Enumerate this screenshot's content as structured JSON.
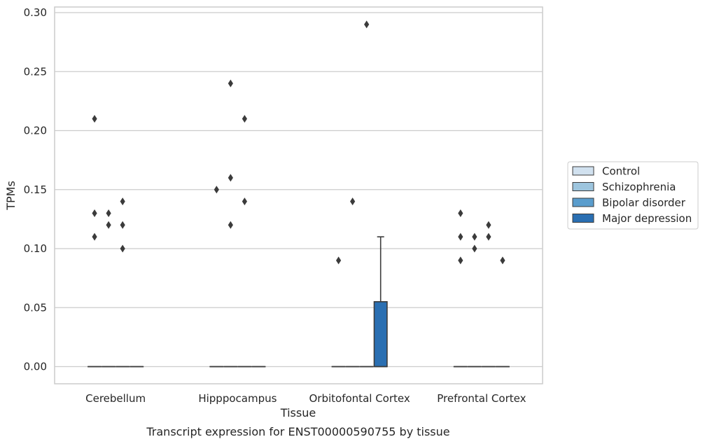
{
  "chart_data": {
    "type": "box",
    "title": "Transcript expression for ENST00000590755 by tissue",
    "xlabel": "Tissue",
    "ylabel": "TPMs",
    "categories": [
      "Cerebellum",
      "Hipppocampus",
      "Orbitofontal Cortex",
      "Prefrontal Cortex"
    ],
    "ylim": [
      -0.015,
      0.305
    ],
    "yticks": [
      0.0,
      0.05,
      0.1,
      0.15,
      0.2,
      0.25,
      0.3
    ],
    "ytick_labels": [
      "0.00",
      "0.05",
      "0.10",
      "0.15",
      "0.20",
      "0.25",
      "0.30"
    ],
    "grid": "horizontal",
    "legend": {
      "position": "right",
      "entries": [
        "Control",
        "Schizophrenia",
        "Bipolar disorder",
        "Major depression"
      ]
    },
    "series_colors": [
      "#d1e1ef",
      "#9dc5de",
      "#5a9dcd",
      "#2a6fb2"
    ],
    "series": [
      {
        "name": "Control",
        "boxes": [
          {
            "category": "Cerebellum",
            "q1": 0,
            "median": 0,
            "q3": 0,
            "whisker_low": 0,
            "whisker_high": 0,
            "outliers": [
              0.21,
              0.13,
              0.11
            ]
          },
          {
            "category": "Hipppocampus",
            "q1": 0,
            "median": 0,
            "q3": 0,
            "whisker_low": 0,
            "whisker_high": 0,
            "outliers": [
              0.15
            ]
          },
          {
            "category": "Orbitofontal Cortex",
            "q1": 0,
            "median": 0,
            "q3": 0,
            "whisker_low": 0,
            "whisker_high": 0,
            "outliers": [
              0.09
            ]
          },
          {
            "category": "Prefrontal Cortex",
            "q1": 0,
            "median": 0,
            "q3": 0,
            "whisker_low": 0,
            "whisker_high": 0,
            "outliers": [
              0.13,
              0.11,
              0.09
            ]
          }
        ]
      },
      {
        "name": "Schizophrenia",
        "boxes": [
          {
            "category": "Cerebellum",
            "q1": 0,
            "median": 0,
            "q3": 0,
            "whisker_low": 0,
            "whisker_high": 0,
            "outliers": [
              0.13,
              0.12
            ]
          },
          {
            "category": "Hipppocampus",
            "q1": 0,
            "median": 0,
            "q3": 0,
            "whisker_low": 0,
            "whisker_high": 0,
            "outliers": [
              0.24,
              0.16,
              0.12
            ]
          },
          {
            "category": "Orbitofontal Cortex",
            "q1": 0,
            "median": 0,
            "q3": 0,
            "whisker_low": 0,
            "whisker_high": 0,
            "outliers": [
              0.14
            ]
          },
          {
            "category": "Prefrontal Cortex",
            "q1": 0,
            "median": 0,
            "q3": 0,
            "whisker_low": 0,
            "whisker_high": 0,
            "outliers": [
              0.11,
              0.1
            ]
          }
        ]
      },
      {
        "name": "Bipolar disorder",
        "boxes": [
          {
            "category": "Cerebellum",
            "q1": 0,
            "median": 0,
            "q3": 0,
            "whisker_low": 0,
            "whisker_high": 0,
            "outliers": [
              0.14,
              0.12,
              0.1
            ]
          },
          {
            "category": "Hipppocampus",
            "q1": 0,
            "median": 0,
            "q3": 0,
            "whisker_low": 0,
            "whisker_high": 0,
            "outliers": [
              0.21,
              0.14
            ]
          },
          {
            "category": "Orbitofontal Cortex",
            "q1": 0,
            "median": 0,
            "q3": 0,
            "whisker_low": 0,
            "whisker_high": 0,
            "outliers": [
              0.29
            ]
          },
          {
            "category": "Prefrontal Cortex",
            "q1": 0,
            "median": 0,
            "q3": 0,
            "whisker_low": 0,
            "whisker_high": 0,
            "outliers": [
              0.12,
              0.11
            ]
          }
        ]
      },
      {
        "name": "Major depression",
        "boxes": [
          {
            "category": "Cerebellum",
            "q1": 0,
            "median": 0,
            "q3": 0,
            "whisker_low": 0,
            "whisker_high": 0,
            "outliers": []
          },
          {
            "category": "Hipppocampus",
            "q1": 0,
            "median": 0,
            "q3": 0,
            "whisker_low": 0,
            "whisker_high": 0,
            "outliers": []
          },
          {
            "category": "Orbitofontal Cortex",
            "q1": 0,
            "median": 0,
            "q3": 0.055,
            "whisker_low": 0,
            "whisker_high": 0.11,
            "outliers": []
          },
          {
            "category": "Prefrontal Cortex",
            "q1": 0,
            "median": 0,
            "q3": 0,
            "whisker_low": 0,
            "whisker_high": 0,
            "outliers": [
              0.09
            ]
          }
        ]
      }
    ]
  }
}
